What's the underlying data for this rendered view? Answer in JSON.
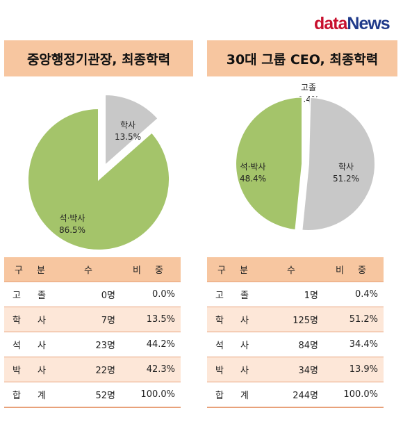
{
  "logo": {
    "part1": "data",
    "part2": "News"
  },
  "colors": {
    "header": "#f7c6a0",
    "alt_row": "#fde7d8",
    "border": "#e8a17a",
    "grad": "#c8c8c8",
    "postgrad": "#a4c46a",
    "highschool": "#2f4f9f"
  },
  "left": {
    "title": "중앙행정기관장, 최종학력",
    "table": {
      "headers": [
        "구 분",
        "수",
        "비 중"
      ],
      "rows": [
        [
          "고 졸",
          "0명",
          "0.0%"
        ],
        [
          "학 사",
          "7명",
          "13.5%"
        ],
        [
          "석 사",
          "23명",
          "44.2%"
        ],
        [
          "박 사",
          "22명",
          "42.3%"
        ],
        [
          "합 계",
          "52명",
          "100.0%"
        ]
      ]
    }
  },
  "right": {
    "title": "30대 그룹 CEO, 최종학력",
    "table": {
      "headers": [
        "구 분",
        "수",
        "비 중"
      ],
      "rows": [
        [
          "고 졸",
          "1명",
          "0.4%"
        ],
        [
          "학 사",
          "125명",
          "51.2%"
        ],
        [
          "석 사",
          "84명",
          "34.4%"
        ],
        [
          "박 사",
          "34명",
          "13.9%"
        ],
        [
          "합 계",
          "244명",
          "100.0%"
        ]
      ]
    }
  },
  "chart_data": [
    {
      "type": "pie",
      "title": "중앙행정기관장, 최종학력",
      "slices": [
        {
          "label": "학사",
          "value": 13.5,
          "display": "13.5%",
          "color": "#c8c8c8",
          "exploded": true
        },
        {
          "label": "석·박사",
          "value": 86.5,
          "display": "86.5%",
          "color": "#a4c46a",
          "exploded": false
        }
      ]
    },
    {
      "type": "pie",
      "title": "30대 그룹 CEO, 최종학력",
      "slices": [
        {
          "label": "고졸",
          "value": 0.4,
          "display": "0.4%",
          "color": "#2f4f9f",
          "exploded": false
        },
        {
          "label": "학사",
          "value": 51.2,
          "display": "51.2%",
          "color": "#c8c8c8",
          "exploded": false
        },
        {
          "label": "석·박사",
          "value": 48.4,
          "display": "48.4%",
          "color": "#a4c46a",
          "exploded": true
        }
      ]
    }
  ]
}
